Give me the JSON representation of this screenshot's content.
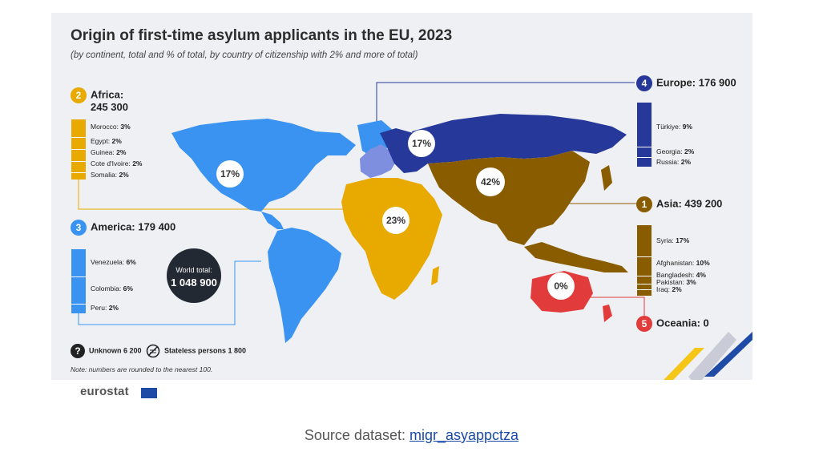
{
  "title": "Origin of first-time asylum applicants in the EU, 2023",
  "subtitle": "(by continent, total and % of total, by country of citizenship with 2% and more of total)",
  "colors": {
    "africa": "#e8aa00",
    "america": "#3a93f0",
    "asia": "#8a5c00",
    "europe": "#26399a",
    "europe_light": "#7e8fe0",
    "oceania": "#e23b3b"
  },
  "regions": {
    "africa": {
      "rank": "2",
      "name": "Africa:",
      "total": "245 300",
      "share": "23%",
      "countries": [
        {
          "name": "Morocco:",
          "pct": "3%",
          "value": 3
        },
        {
          "name": "Egypt:",
          "pct": "2%",
          "value": 2
        },
        {
          "name": "Guinea:",
          "pct": "2%",
          "value": 2
        },
        {
          "name": "Cote d'Ivoire:",
          "pct": "2%",
          "value": 2
        },
        {
          "name": "Somalia:",
          "pct": "2%",
          "value": 2
        }
      ]
    },
    "america": {
      "rank": "3",
      "name": "America:",
      "total": "179 400",
      "share": "17%",
      "countries": [
        {
          "name": "Venezuela:",
          "pct": "6%",
          "value": 6
        },
        {
          "name": "Colombia:",
          "pct": "6%",
          "value": 6
        },
        {
          "name": "Peru:",
          "pct": "2%",
          "value": 2
        }
      ]
    },
    "europe": {
      "rank": "4",
      "name": "Europe:",
      "total": "176 900",
      "share": "17%",
      "countries": [
        {
          "name": "Türkiye:",
          "pct": "9%",
          "value": 9
        },
        {
          "name": "Georgia:",
          "pct": "2%",
          "value": 2
        },
        {
          "name": "Russia:",
          "pct": "2%",
          "value": 2
        }
      ]
    },
    "asia": {
      "rank": "1",
      "name": "Asia:",
      "total": "439 200",
      "share": "42%",
      "countries": [
        {
          "name": "Syria:",
          "pct": "17%",
          "value": 17
        },
        {
          "name": "Afghanistan:",
          "pct": "10%",
          "value": 10
        },
        {
          "name": "Bangladesh:",
          "pct": "4%",
          "value": 4
        },
        {
          "name": "Pakistan:",
          "pct": "3%",
          "value": 3
        },
        {
          "name": "Iraq:",
          "pct": "2%",
          "value": 2
        }
      ]
    },
    "oceania": {
      "rank": "5",
      "name": "Oceania:",
      "total": "0",
      "share": "0%",
      "countries": []
    }
  },
  "world": {
    "label": "World total:",
    "value": "1 048 900"
  },
  "legend": {
    "unknown_label": "Unknown 6 200",
    "stateless_label": "Stateless persons 1 800",
    "unknown_icon": "question-icon",
    "stateless_icon": "stateless-icon"
  },
  "note": "Note: numbers are rounded to the nearest 100.",
  "brand": "eurostat",
  "source": {
    "prefix": "Source dataset: ",
    "link_text": "migr_asyappctza"
  }
}
